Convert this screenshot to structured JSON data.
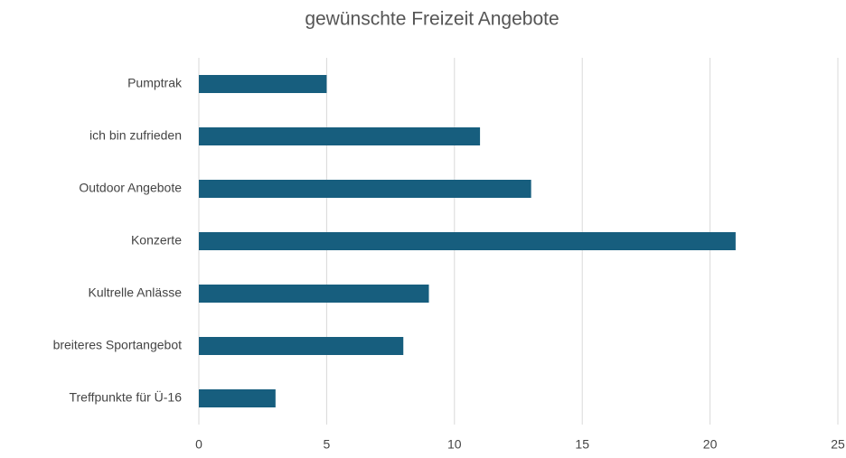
{
  "chart_data": {
    "type": "bar",
    "orientation": "horizontal",
    "title": "gewünschte Freizeit Angebote",
    "categories": [
      "Pumptrak",
      "ich bin zufrieden",
      "Outdoor Angebote",
      "Konzerte",
      "Kultrelle Anlässe",
      "breiteres Sportangebot",
      "Treffpunkte für Ü-16"
    ],
    "values": [
      5,
      11,
      13,
      21,
      9,
      8,
      3
    ],
    "color": "#175e7e",
    "xlim": [
      0,
      25
    ],
    "xticks": [
      0,
      5,
      10,
      15,
      20,
      25
    ],
    "grid": true
  }
}
